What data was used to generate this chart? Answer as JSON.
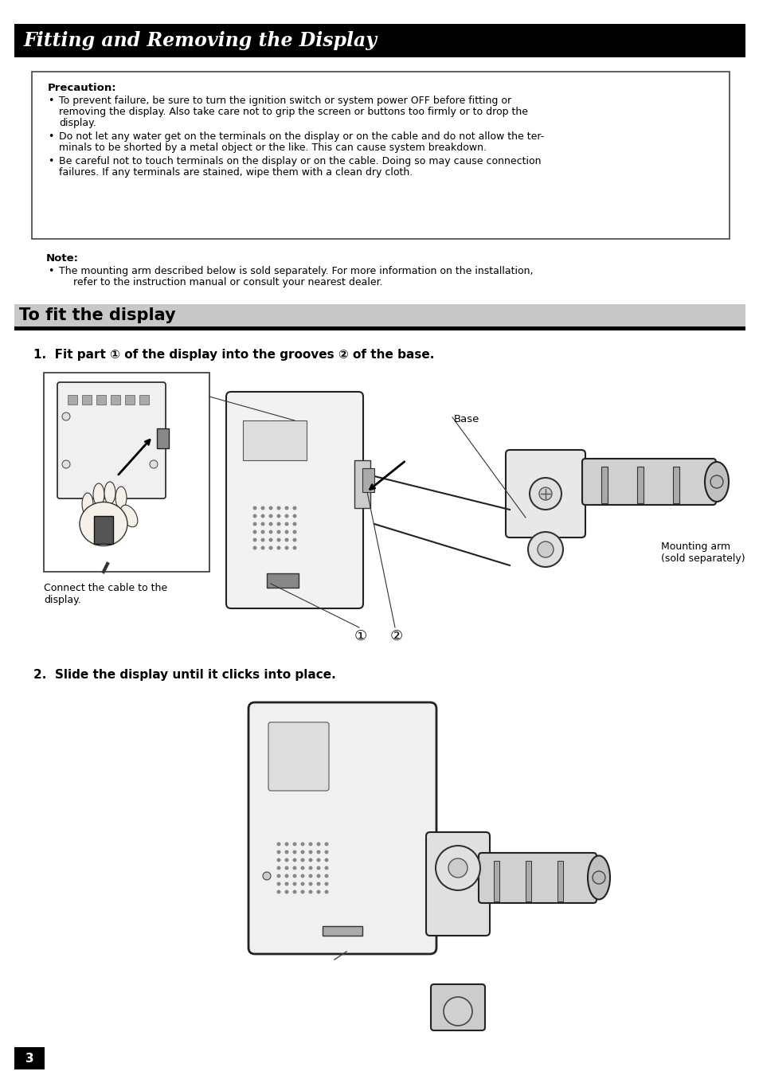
{
  "page_background": "#ffffff",
  "header_bg": "#000000",
  "header_text": "Fitting and Removing the Display",
  "header_text_color": "#ffffff",
  "header_font_size": 17,
  "section_bg": "#c8c8c8",
  "section_title": "To fit the display",
  "section_title_size": 15,
  "precaution_title": "Precaution:",
  "note_title": "Note:",
  "step1_text_a": "1.  Fit part ",
  "step1_num1": "①",
  "step1_text_b": " of the display into the grooves ",
  "step1_num2": "②",
  "step1_text_c": " of the base.",
  "step2_text": "2.  Slide the display until it clicks into place.",
  "caption1": "Connect the cable to the\ndisplay.",
  "label_base": "Base",
  "label_arm": "Mounting arm\n(sold separately)",
  "page_number": "3",
  "prec_bullet1_line1": "To prevent failure, be sure to turn the ignition switch or system power OFF before fitting or",
  "prec_bullet1_line2": "removing the display. Also take care not to grip the screen or buttons too firmly or to drop the",
  "prec_bullet1_line3": "display.",
  "prec_bullet2_line1": "Do not let any water get on the terminals on the display or on the cable and do not allow the ter-",
  "prec_bullet2_line2": "minals to be shorted by a metal object or the like. This can cause system breakdown.",
  "prec_bullet3_line1": "Be careful not to touch terminals on the display or on the cable. Doing so may cause connection",
  "prec_bullet3_line2": "failures. If any terminals are stained, wipe them with a clean dry cloth.",
  "note_bullet1_line1": "The mounting arm described below is sold separately. For more information on the installation,",
  "note_bullet1_line2": "refer to the instruction manual or consult your nearest dealer."
}
